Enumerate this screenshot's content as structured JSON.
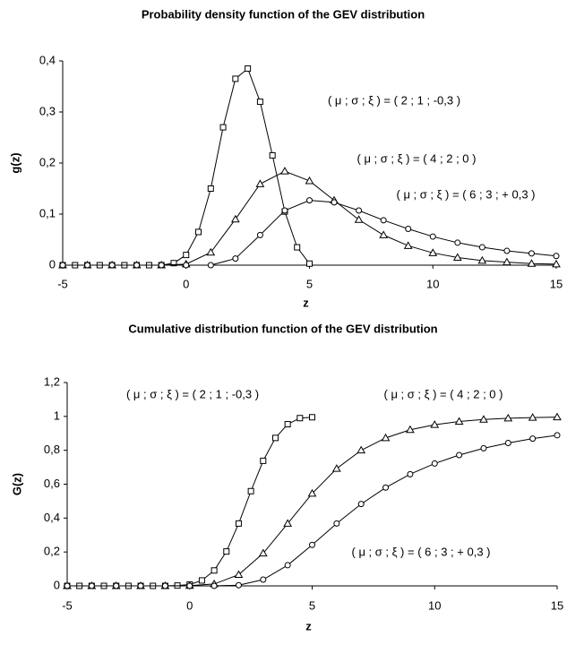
{
  "chart_data": [
    {
      "type": "line",
      "title": "Probability density function of the GEV distribution",
      "x_label": "z",
      "y_label": "g(z)",
      "xlim": [
        -5,
        15
      ],
      "xticks": [
        -5,
        0,
        5,
        10,
        15
      ],
      "ylim": [
        0,
        0.4
      ],
      "yticks": [
        0,
        {
          "value": 0.1,
          "label": "0,1"
        },
        {
          "value": 0.2,
          "label": "0,2"
        },
        {
          "value": 0.3,
          "label": "0,3"
        },
        {
          "value": 0.4,
          "label": "0,4"
        }
      ],
      "grid": false,
      "annotations": [
        "( μ ; σ ; ξ ) = ( 2 ; 1 ; -0,3 )",
        "( μ ; σ ; ξ ) = ( 4 ; 2 ; 0 )",
        "( μ ; σ ; ξ ) = ( 6 ; 3 ; + 0,3 )"
      ],
      "series": [
        {
          "color": "#000000",
          "marker": "square",
          "x": [
            -5,
            -4.5,
            -4,
            -3.5,
            -3,
            -2.5,
            -2,
            -1.5,
            -1,
            -0.5,
            0,
            0.5,
            1,
            1.5,
            2,
            2.5,
            3,
            3.5,
            4,
            4.5,
            5
          ],
          "values": [
            0,
            0,
            0,
            0,
            0,
            0,
            0,
            0,
            0,
            0.004,
            0.02,
            0.065,
            0.15,
            0.27,
            0.365,
            0.385,
            0.32,
            0.215,
            0.105,
            0.035,
            0.003
          ]
        },
        {
          "color": "#000000",
          "marker": "triangle",
          "x": [
            -5,
            -4,
            -3,
            -2,
            -1,
            0,
            1,
            2,
            3,
            4,
            5,
            6,
            7,
            8,
            9,
            10,
            11,
            12,
            13,
            14,
            15
          ],
          "values": [
            0,
            0,
            0,
            0,
            0,
            0.002,
            0.025,
            0.09,
            0.159,
            0.184,
            0.165,
            0.127,
            0.089,
            0.059,
            0.038,
            0.024,
            0.015,
            0.009,
            0.006,
            0.003,
            0.002
          ]
        },
        {
          "color": "#000000",
          "marker": "circle",
          "x": [
            -5,
            -4,
            -3,
            -2,
            -1,
            0,
            1,
            2,
            3,
            4,
            5,
            6,
            7,
            8,
            9,
            10,
            11,
            12,
            13,
            14,
            15
          ],
          "values": [
            0,
            0,
            0,
            0,
            0,
            0,
            0,
            0.013,
            0.059,
            0.107,
            0.127,
            0.123,
            0.107,
            0.088,
            0.071,
            0.056,
            0.044,
            0.035,
            0.028,
            0.023,
            0.018
          ]
        }
      ]
    },
    {
      "type": "line",
      "title": "Cumulative distribution function of the GEV distribution",
      "x_label": "z",
      "y_label": "G(z)",
      "xlim": [
        -5,
        15
      ],
      "xticks": [
        -5,
        0,
        5,
        10,
        15
      ],
      "ylim": [
        0,
        1.2
      ],
      "yticks": [
        0,
        {
          "value": 0.2,
          "label": "0,2"
        },
        {
          "value": 0.4,
          "label": "0,4"
        },
        {
          "value": 0.6,
          "label": "0,6"
        },
        {
          "value": 0.8,
          "label": "0,8"
        },
        1,
        {
          "value": 1.2,
          "label": "1,2"
        }
      ],
      "grid": false,
      "annotations": [
        "( μ ; σ ; ξ ) = ( 2 ; 1 ; -0,3 )",
        "( μ ; σ ; ξ ) = ( 4 ; 2 ; 0 )",
        "( μ ; σ ; ξ ) = ( 6 ; 3 ; + 0,3 )"
      ],
      "series": [
        {
          "color": "#000000",
          "marker": "square",
          "x": [
            -5,
            -4.5,
            -4,
            -3.5,
            -3,
            -2.5,
            -2,
            -1.5,
            -1,
            -0.5,
            0,
            0.5,
            1,
            1.5,
            2,
            2.5,
            3,
            3.5,
            4,
            4.5,
            5
          ],
          "values": [
            0,
            0,
            0,
            0,
            0,
            0,
            0,
            0,
            0,
            0.002,
            0.008,
            0.032,
            0.091,
            0.203,
            0.368,
            0.559,
            0.738,
            0.873,
            0.954,
            0.99,
            0.995
          ]
        },
        {
          "color": "#000000",
          "marker": "triangle",
          "x": [
            -5,
            -4,
            -3,
            -2,
            -1,
            0,
            1,
            2,
            3,
            4,
            5,
            6,
            7,
            8,
            9,
            10,
            11,
            12,
            13,
            14,
            15
          ],
          "values": [
            0,
            0,
            0,
            0,
            0,
            0.001,
            0.011,
            0.066,
            0.192,
            0.368,
            0.545,
            0.692,
            0.8,
            0.873,
            0.921,
            0.951,
            0.97,
            0.982,
            0.989,
            0.993,
            0.996
          ]
        },
        {
          "color": "#000000",
          "marker": "circle",
          "x": [
            -5,
            -4,
            -3,
            -2,
            -1,
            0,
            1,
            2,
            3,
            4,
            5,
            6,
            7,
            8,
            9,
            10,
            11,
            12,
            13,
            14,
            15
          ],
          "values": [
            0,
            0,
            0,
            0,
            0,
            0,
            0,
            0.004,
            0.037,
            0.122,
            0.242,
            0.368,
            0.483,
            0.58,
            0.659,
            0.722,
            0.772,
            0.812,
            0.843,
            0.869,
            0.889
          ]
        }
      ]
    }
  ]
}
